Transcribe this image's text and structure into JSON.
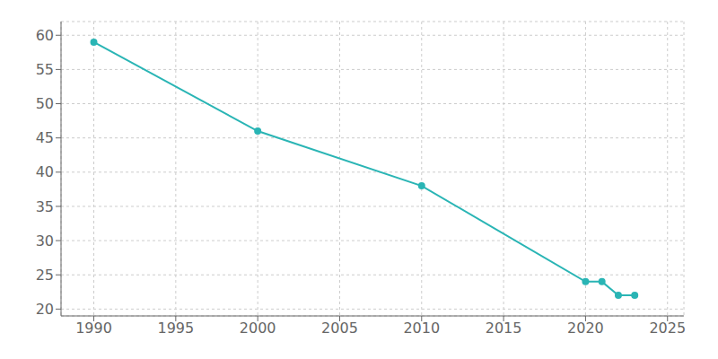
{
  "chart_data": {
    "type": "line",
    "x": [
      1990,
      2000,
      2010,
      2020,
      2021,
      2022,
      2023
    ],
    "values": [
      59,
      46,
      38,
      24,
      24,
      22,
      22
    ],
    "color": "#2ab5b5",
    "marker": "circle",
    "xlim": [
      1988,
      2026
    ],
    "ylim": [
      19,
      62
    ],
    "xticks": [
      1990,
      1995,
      2000,
      2005,
      2010,
      2015,
      2020,
      2025
    ],
    "yticks": [
      20,
      25,
      30,
      35,
      40,
      45,
      50,
      55,
      60
    ],
    "grid": true
  }
}
